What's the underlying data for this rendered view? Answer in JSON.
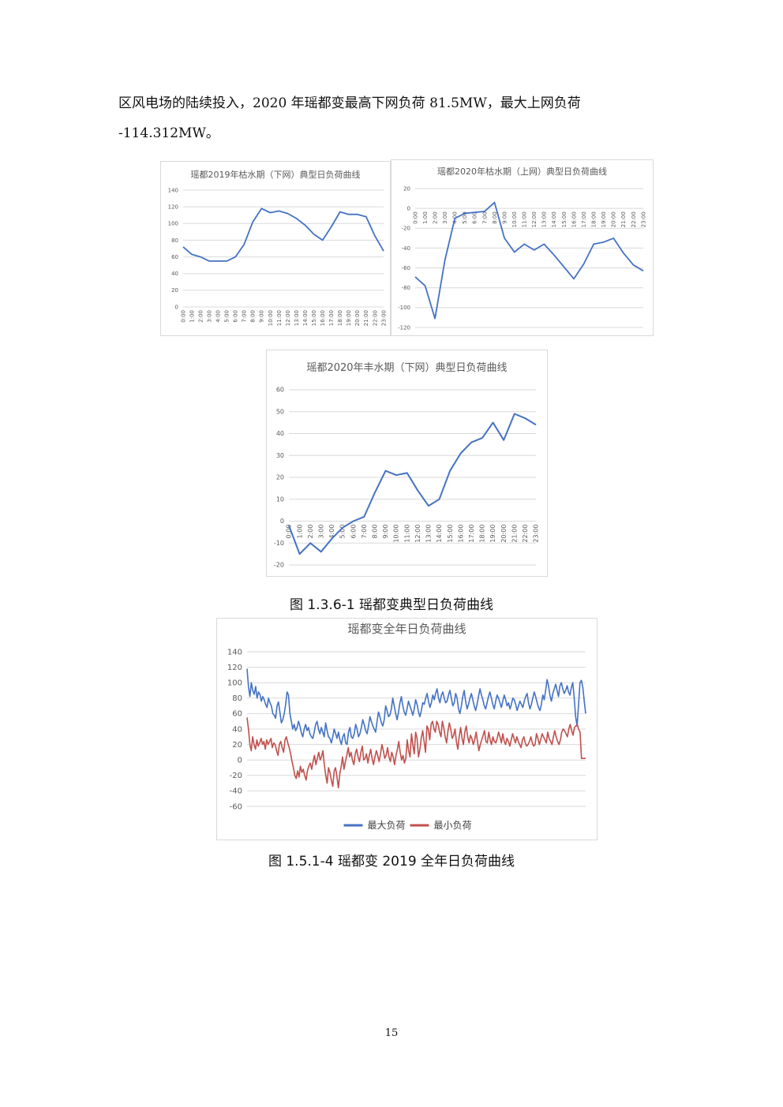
{
  "paragraph": {
    "line1": "区风电场的陆续投入，2020 年瑶都变最高下网负荷 81.5MW，最大上网负荷",
    "line2": "-114.312MW。"
  },
  "captions": {
    "fig1": "图 1.3.6-1  瑶都变典型日负荷曲线",
    "fig2": "图 1.5.1-4  瑶都变 2019 全年日负荷曲线"
  },
  "page_number": "15",
  "colors": {
    "blue": "#4472c4",
    "red": "#c0504d",
    "grid": "#d9d9d9"
  },
  "chart_data": [
    {
      "id": "c1",
      "type": "line",
      "title": "瑶都2019年枯水期（下网）典型日负荷曲线",
      "categories": [
        "0:00",
        "1:00",
        "2:00",
        "3:00",
        "4:00",
        "5:00",
        "6:00",
        "7:00",
        "8:00",
        "9:00",
        "10:00",
        "11:00",
        "12:00",
        "13:00",
        "14:00",
        "15:00",
        "16:00",
        "17:00",
        "18:00",
        "19:00",
        "20:00",
        "21:00",
        "22:00",
        "23:00"
      ],
      "ylim": [
        0,
        140
      ],
      "yticks": [
        0,
        20,
        40,
        60,
        80,
        100,
        120,
        140
      ],
      "grid": true,
      "series": [
        {
          "values": [
            72,
            63,
            60,
            55,
            55,
            55,
            60,
            75,
            102,
            118,
            113,
            115,
            112,
            106,
            98,
            87,
            80,
            96,
            114,
            111,
            111,
            108,
            85,
            67
          ]
        }
      ]
    },
    {
      "id": "c2",
      "type": "line",
      "title": "瑶都2020年枯水期（上网）典型日负荷曲线",
      "categories": [
        "0:00",
        "1:00",
        "2:00",
        "3:00",
        "4:00",
        "5:00",
        "6:00",
        "7:00",
        "8:00",
        "9:00",
        "10:00",
        "11:00",
        "12:00",
        "13:00",
        "14:00",
        "15:00",
        "16:00",
        "17:00",
        "18:00",
        "19:00",
        "20:00",
        "21:00",
        "22:00",
        "23:00"
      ],
      "ylim": [
        -120,
        20
      ],
      "yticks": [
        -120,
        -100,
        -80,
        -60,
        -40,
        -20,
        0,
        20
      ],
      "grid": true,
      "series": [
        {
          "values": [
            -69,
            -78,
            -111,
            -52,
            -10,
            -5,
            -4,
            -3,
            6,
            -30,
            -44,
            -36,
            -42,
            -36,
            -47,
            -59,
            -71,
            -56,
            -36,
            -34,
            -30,
            -45,
            -57,
            -63
          ]
        }
      ]
    },
    {
      "id": "c3",
      "type": "line",
      "title": "瑶都2020年丰水期（下网）典型日负荷曲线",
      "categories": [
        "0:00",
        "1:00",
        "2:00",
        "3:00",
        "4:00",
        "5:00",
        "6:00",
        "7:00",
        "8:00",
        "9:00",
        "10:00",
        "11:00",
        "12:00",
        "13:00",
        "14:00",
        "15:00",
        "16:00",
        "17:00",
        "18:00",
        "19:00",
        "20:00",
        "21:00",
        "22:00",
        "23:00"
      ],
      "ylim": [
        -20,
        60
      ],
      "yticks": [
        -20,
        -10,
        0,
        10,
        20,
        30,
        40,
        50,
        60
      ],
      "grid": true,
      "series": [
        {
          "values": [
            -2,
            -15,
            -10,
            -14,
            -8,
            -3,
            0,
            2,
            13,
            23,
            21,
            22,
            14,
            7,
            10,
            23,
            31,
            36,
            38,
            45,
            37,
            49,
            47,
            44
          ]
        }
      ]
    },
    {
      "id": "c4",
      "type": "line",
      "title": "瑶都变全年日负荷曲线",
      "ylim": [
        -60,
        140
      ],
      "yticks": [
        -60,
        -40,
        -20,
        0,
        20,
        40,
        60,
        80,
        100,
        120,
        140
      ],
      "grid": true,
      "legend": "bottom",
      "x": "day index 1-365",
      "series": [
        {
          "name": "最大负荷",
          "values": [
            118,
            95,
            82,
            100,
            90,
            85,
            95,
            80,
            88,
            85,
            76,
            82,
            78,
            72,
            68,
            80,
            74,
            70,
            60,
            58,
            54,
            70,
            75,
            62,
            48,
            52,
            60,
            72,
            88,
            84,
            60,
            50,
            40,
            46,
            38,
            42,
            50,
            44,
            35,
            30,
            40,
            46,
            38,
            42,
            34,
            30,
            28,
            36,
            46,
            50,
            40,
            34,
            42,
            36,
            30,
            48,
            38,
            30,
            28,
            22,
            30,
            40,
            34,
            28,
            36,
            26,
            20,
            30,
            34,
            22,
            20,
            36,
            42,
            30,
            28,
            34,
            46,
            40,
            30,
            34,
            42,
            52,
            46,
            38,
            34,
            44,
            56,
            50,
            44,
            40,
            36,
            50,
            62,
            56,
            48,
            44,
            52,
            70,
            64,
            56,
            58,
            66,
            80,
            70,
            60,
            52,
            62,
            74,
            82,
            70,
            62,
            58,
            66,
            76,
            70,
            64,
            58,
            66,
            78,
            72,
            62,
            56,
            64,
            74,
            72,
            80,
            86,
            76,
            68,
            74,
            84,
            78,
            86,
            92,
            80,
            74,
            84,
            88,
            80,
            74,
            76,
            84,
            90,
            80,
            70,
            74,
            86,
            80,
            66,
            60,
            70,
            82,
            90,
            76,
            66,
            72,
            80,
            86,
            78,
            70,
            64,
            72,
            82,
            92,
            84,
            78,
            70,
            66,
            74,
            82,
            88,
            80,
            72,
            66,
            76,
            84,
            80,
            74,
            68,
            76,
            84,
            78,
            70,
            74,
            66,
            72,
            80,
            78,
            72,
            64,
            70,
            76,
            72,
            68,
            76,
            82,
            86,
            74,
            66,
            72,
            80,
            88,
            82,
            74,
            68,
            64,
            72,
            84,
            78,
            90,
            104,
            96,
            84,
            76,
            86,
            92,
            98,
            90,
            82,
            96,
            100,
            92,
            86,
            90,
            96,
            88,
            84,
            94,
            100,
            80,
            56,
            44,
            70,
            100,
            103,
            94,
            76,
            60
          ]
        },
        {
          "name": "最小负荷",
          "values": [
            55,
            40,
            20,
            12,
            30,
            20,
            14,
            26,
            18,
            22,
            28,
            20,
            24,
            14,
            26,
            20,
            24,
            28,
            16,
            22,
            20,
            12,
            6,
            20,
            24,
            16,
            10,
            26,
            30,
            22,
            16,
            8,
            -2,
            -10,
            -20,
            -24,
            -14,
            -22,
            -8,
            -16,
            -12,
            -20,
            -26,
            -14,
            -8,
            -4,
            -12,
            -2,
            6,
            -6,
            2,
            10,
            0,
            4,
            12,
            -6,
            -20,
            -30,
            -10,
            -16,
            -26,
            -34,
            -14,
            -10,
            -22,
            -36,
            -18,
            -8,
            4,
            -12,
            -2,
            6,
            16,
            4,
            10,
            0,
            -6,
            8,
            14,
            4,
            -2,
            10,
            18,
            0,
            2,
            8,
            -4,
            6,
            14,
            2,
            -6,
            4,
            12,
            6,
            -2,
            8,
            20,
            12,
            2,
            6,
            16,
            4,
            -2,
            10,
            4,
            -6,
            6,
            14,
            24,
            10,
            0,
            6,
            -4,
            2,
            26,
            12,
            4,
            34,
            20,
            8,
            36,
            28,
            4,
            14,
            28,
            38,
            24,
            10,
            44,
            40,
            26,
            46,
            50,
            40,
            36,
            50,
            46,
            36,
            30,
            50,
            42,
            30,
            22,
            38,
            48,
            40,
            28,
            32,
            40,
            24,
            14,
            30,
            42,
            28,
            20,
            36,
            44,
            30,
            22,
            32,
            28,
            20,
            26,
            36,
            24,
            12,
            20,
            26,
            32,
            38,
            24,
            22,
            36,
            26,
            20,
            30,
            24,
            22,
            28,
            36,
            30,
            22,
            34,
            24,
            20,
            28,
            24,
            18,
            26,
            34,
            28,
            22,
            30,
            24,
            20,
            16,
            26,
            30,
            22,
            18,
            20,
            24,
            30,
            22,
            18,
            20,
            34,
            28,
            20,
            26,
            34,
            30,
            26,
            22,
            36,
            28,
            24,
            20,
            30,
            38,
            30,
            24,
            20,
            26,
            36,
            40,
            38,
            34,
            30,
            40,
            46,
            38,
            32,
            42,
            44,
            46,
            40,
            36,
            2,
            2,
            2,
            2
          ]
        }
      ]
    }
  ]
}
